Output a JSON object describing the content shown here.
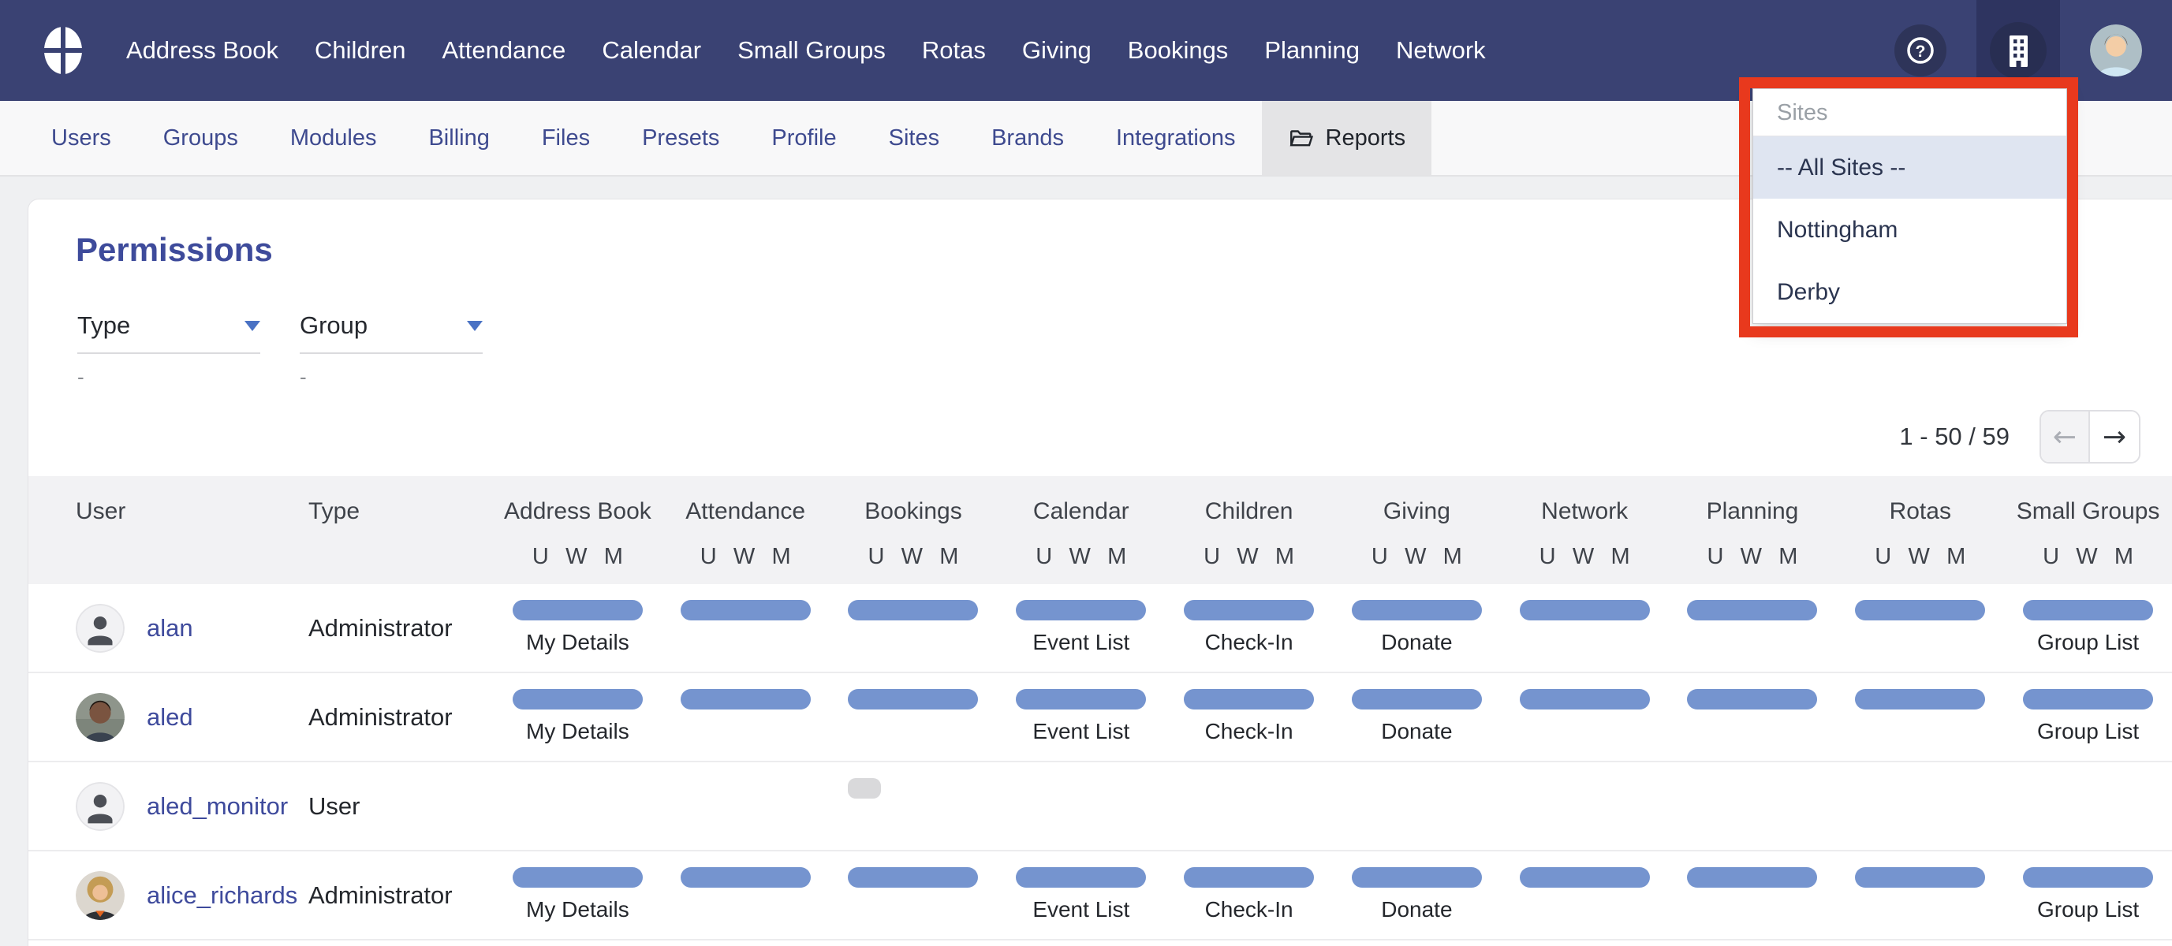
{
  "nav": {
    "items": [
      "Address Book",
      "Children",
      "Attendance",
      "Calendar",
      "Small Groups",
      "Rotas",
      "Giving",
      "Bookings",
      "Planning",
      "Network"
    ]
  },
  "tabs": {
    "items": [
      {
        "label": "Users"
      },
      {
        "label": "Groups"
      },
      {
        "label": "Modules"
      },
      {
        "label": "Billing"
      },
      {
        "label": "Files"
      },
      {
        "label": "Presets"
      },
      {
        "label": "Profile"
      },
      {
        "label": "Sites"
      },
      {
        "label": "Brands"
      },
      {
        "label": "Integrations"
      },
      {
        "label": "Reports",
        "active": true,
        "icon": "folder-open-icon"
      }
    ]
  },
  "sites_dropdown": {
    "header": "Sites",
    "options": [
      "-- All Sites --",
      "Nottingham",
      "Derby"
    ],
    "selected": "-- All Sites --"
  },
  "page": {
    "title": "Permissions"
  },
  "filters": [
    {
      "label": "Type",
      "hint": "-"
    },
    {
      "label": "Group",
      "hint": "-"
    }
  ],
  "pagination": {
    "range": "1 - 50 / 59",
    "prev_icon": "←",
    "next_icon": "→"
  },
  "table": {
    "columns": {
      "user": "User",
      "type": "Type",
      "modules": [
        "Address Book",
        "Attendance",
        "Bookings",
        "Calendar",
        "Children",
        "Giving",
        "Network",
        "Planning",
        "Rotas",
        "Small Groups"
      ],
      "sub": [
        "U",
        "W",
        "M"
      ]
    },
    "rows": [
      {
        "name": "alan",
        "type": "Administrator",
        "avatar": "person-placeholder",
        "cells": [
          {
            "bar": "full",
            "label": "My Details"
          },
          {
            "bar": "full"
          },
          {
            "bar": "full"
          },
          {
            "bar": "full",
            "label": "Event List"
          },
          {
            "bar": "full",
            "label": "Check-In"
          },
          {
            "bar": "full",
            "label": "Donate"
          },
          {
            "bar": "full"
          },
          {
            "bar": "full"
          },
          {
            "bar": "full"
          },
          {
            "bar": "full",
            "label": "Group List"
          }
        ]
      },
      {
        "name": "aled",
        "type": "Administrator",
        "avatar": "photo-male",
        "cells": [
          {
            "bar": "full",
            "label": "My Details"
          },
          {
            "bar": "full"
          },
          {
            "bar": "full"
          },
          {
            "bar": "full",
            "label": "Event List"
          },
          {
            "bar": "full",
            "label": "Check-In"
          },
          {
            "bar": "full",
            "label": "Donate"
          },
          {
            "bar": "full"
          },
          {
            "bar": "full"
          },
          {
            "bar": "full"
          },
          {
            "bar": "full",
            "label": "Group List"
          }
        ]
      },
      {
        "name": "aled_monitor",
        "type": "User",
        "avatar": "person-placeholder",
        "cells": [
          null,
          null,
          {
            "bar": "mini"
          },
          null,
          null,
          null,
          null,
          null,
          null,
          null
        ]
      },
      {
        "name": "alice_richards",
        "type": "Administrator",
        "avatar": "photo-female",
        "cells": [
          {
            "bar": "full",
            "label": "My Details"
          },
          {
            "bar": "full"
          },
          {
            "bar": "full"
          },
          {
            "bar": "full",
            "label": "Event List"
          },
          {
            "bar": "full",
            "label": "Check-In"
          },
          {
            "bar": "full",
            "label": "Donate"
          },
          {
            "bar": "full"
          },
          {
            "bar": "full"
          },
          {
            "bar": "full"
          },
          {
            "bar": "full",
            "label": "Group List"
          }
        ]
      }
    ]
  },
  "colors": {
    "navbar": "#3a4273",
    "annotation_red": "#e8391d",
    "permission_bar_blue": "#7594cf",
    "link_blue": "#3e4a9c",
    "selected_option_bg": "#dfe5f1",
    "active_tab_bg": "#e4e4e6"
  }
}
